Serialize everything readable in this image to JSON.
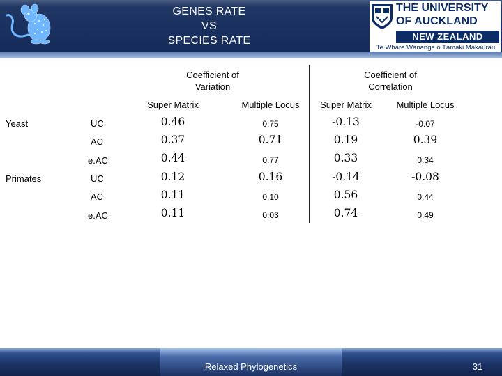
{
  "header": {
    "title": "GENES RATE\nVS\nSPECIES RATE"
  },
  "university_logo": {
    "line1": "THE UNIVERSITY",
    "line2": "OF AUCKLAND",
    "country": "NEW ZEALAND",
    "maori": "Te Whare Wānanga o Tāmaki Makaurau"
  },
  "table": {
    "group_headers": {
      "variation": "Coefficient  of\nVariation",
      "correlation": "Coefficient of\nCorrelation"
    },
    "sub_headers": [
      "Super Matrix",
      "Multiple Locus",
      "Super Matrix",
      "Multiple Locus"
    ],
    "groups": [
      {
        "name": "Yeast",
        "rows": [
          {
            "label": "UC",
            "values": [
              "0.46",
              "0.75",
              "-0.13",
              "-0.07"
            ]
          },
          {
            "label": "AC",
            "values": [
              "0.37",
              "0.71",
              "0.19",
              "0.39"
            ]
          },
          {
            "label": "e.AC",
            "values": [
              "0.44",
              "0.77",
              "0.33",
              "0.34"
            ]
          }
        ]
      },
      {
        "name": "Primates",
        "rows": [
          {
            "label": "UC",
            "values": [
              "0.12",
              "0.16",
              "-0.14",
              "-0.08"
            ]
          },
          {
            "label": "AC",
            "values": [
              "0.11",
              "0.10",
              "0.56",
              "0.44"
            ]
          },
          {
            "label": "e.AC",
            "values": [
              "0.11",
              "0.03",
              "0.74",
              "0.49"
            ]
          }
        ]
      }
    ]
  },
  "footer": {
    "text": "Relaxed Phylogenetics",
    "page_number": "31"
  }
}
